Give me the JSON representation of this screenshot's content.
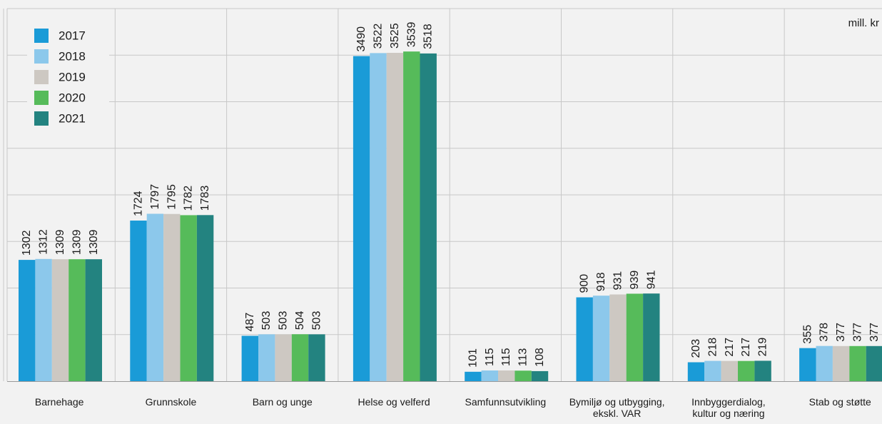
{
  "chart_data": {
    "type": "bar",
    "unit_label": "mill. kr",
    "categories": [
      [
        "Barnehage"
      ],
      [
        "Grunnskole"
      ],
      [
        "Barn og unge"
      ],
      [
        "Helse og velferd"
      ],
      [
        "Samfunnsutvikling"
      ],
      [
        "Bymiljø og utbygging,",
        "ekskl. VAR"
      ],
      [
        "Innbyggerdialog,",
        "kultur og næring"
      ],
      [
        "Stab og støtte"
      ]
    ],
    "series": [
      {
        "name": "2017",
        "color": "#1a9bd7",
        "values": [
          1302,
          1724,
          487,
          3490,
          101,
          900,
          203,
          355
        ]
      },
      {
        "name": "2018",
        "color": "#8cc8eb",
        "values": [
          1312,
          1797,
          503,
          3522,
          115,
          918,
          218,
          378
        ]
      },
      {
        "name": "2019",
        "color": "#cdc8c2",
        "values": [
          1309,
          1795,
          503,
          3525,
          115,
          931,
          217,
          377
        ]
      },
      {
        "name": "2020",
        "color": "#56bb5a",
        "values": [
          1309,
          1782,
          504,
          3539,
          113,
          939,
          217,
          377
        ]
      },
      {
        "name": "2021",
        "color": "#238380",
        "values": [
          1309,
          1783,
          503,
          3518,
          108,
          941,
          219,
          377
        ]
      }
    ],
    "ylim": [
      0,
      4000
    ],
    "grid": true,
    "legend_position": "top-left"
  }
}
